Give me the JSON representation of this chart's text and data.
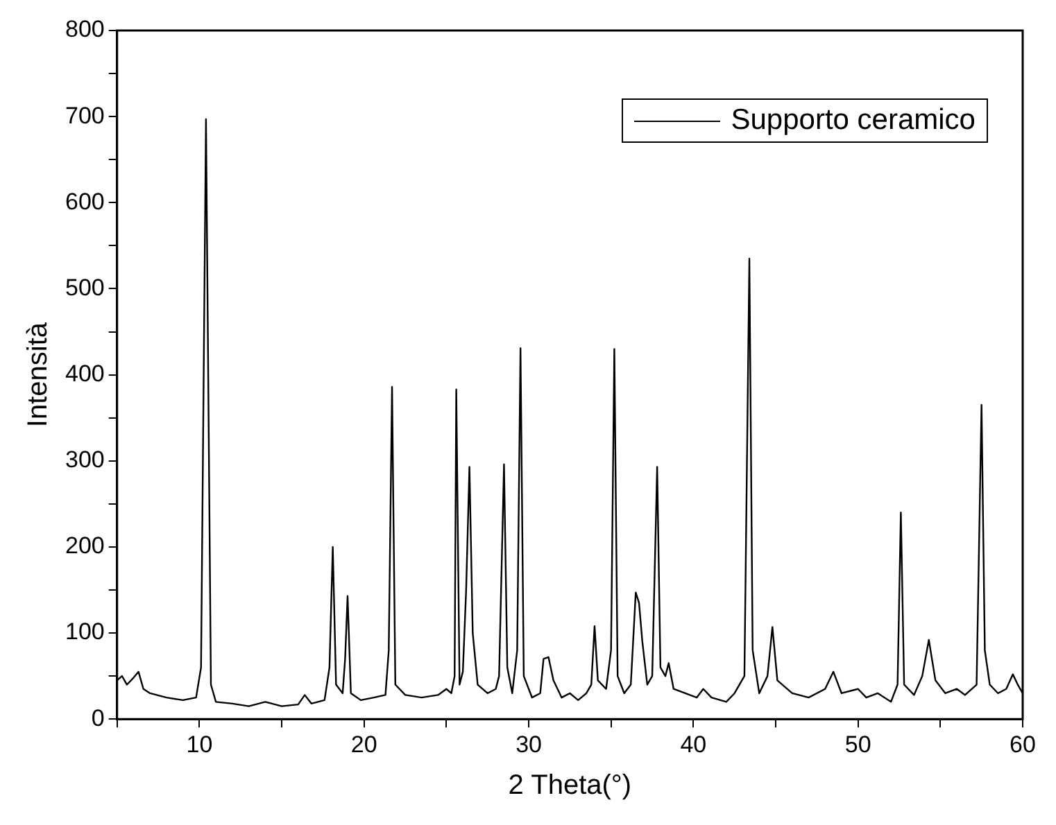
{
  "chart_data": {
    "type": "line",
    "xlabel": "2 Theta(°)",
    "ylabel": "Intensità",
    "legend": "top right",
    "marker": "none",
    "line_style": "solid",
    "grid": false,
    "xlim": [
      5,
      60
    ],
    "xticks": [
      {
        "value": 5,
        "label": null
      },
      10,
      {
        "value": 15,
        "label": null
      },
      20,
      {
        "value": 25,
        "label": null
      },
      30,
      {
        "value": 35,
        "label": null
      },
      40,
      {
        "value": 45,
        "label": null
      },
      50,
      {
        "value": 55,
        "label": null
      },
      60
    ],
    "ylim": [
      0,
      800
    ],
    "yticks": [
      0,
      {
        "value": 50,
        "label": null
      },
      100,
      {
        "value": 150,
        "label": null
      },
      200,
      {
        "value": 250,
        "label": null
      },
      300,
      {
        "value": 350,
        "label": null
      },
      400,
      {
        "value": 450,
        "label": null
      },
      500,
      {
        "value": 550,
        "label": null
      },
      600,
      {
        "value": 650,
        "label": null
      },
      700,
      {
        "value": 750,
        "label": null
      },
      800
    ],
    "x": [
      5,
      5.3,
      5.6,
      6,
      6.3,
      6.6,
      7,
      8,
      9,
      9.8,
      10.1,
      10.4,
      10.7,
      11,
      12,
      13,
      14,
      15,
      16,
      16.4,
      16.8,
      17.6,
      17.9,
      18.1,
      18.3,
      18.7,
      18.85,
      19.0,
      19.2,
      19.8,
      20.6,
      21.3,
      21.5,
      21.7,
      21.9,
      22.5,
      23.5,
      24.5,
      25,
      25.3,
      25.5,
      25.6,
      25.8,
      26.0,
      26.2,
      26.4,
      26.6,
      26.9,
      27.5,
      28,
      28.2,
      28.5,
      28.7,
      29.0,
      29.3,
      29.5,
      29.7,
      30.2,
      30.7,
      30.9,
      31.2,
      31.5,
      32,
      32.5,
      33,
      33.5,
      33.8,
      34.0,
      34.2,
      34.7,
      35.0,
      35.2,
      35.4,
      35.8,
      36.2,
      36.5,
      36.7,
      36.9,
      37.2,
      37.5,
      37.8,
      38.0,
      38.3,
      38.5,
      38.8,
      39.5,
      40.2,
      40.6,
      41.1,
      42,
      42.5,
      43.1,
      43.4,
      43.6,
      44.0,
      44.5,
      44.8,
      45.1,
      46,
      47,
      48,
      48.5,
      49,
      50,
      50.5,
      51.2,
      52,
      52.4,
      52.6,
      52.8,
      53.4,
      53.9,
      54.3,
      54.7,
      55.3,
      56,
      56.5,
      57.2,
      57.5,
      57.7,
      58,
      58.5,
      59,
      59.4,
      59.7,
      60
    ],
    "series": [
      {
        "name": "Supporto ceramico",
        "color": "#000000",
        "values": [
          45,
          50,
          40,
          48,
          55,
          35,
          30,
          25,
          22,
          25,
          60,
          697,
          40,
          20,
          18,
          15,
          20,
          15,
          17,
          28,
          18,
          22,
          60,
          200,
          40,
          30,
          70,
          143,
          30,
          22,
          25,
          28,
          80,
          386,
          40,
          28,
          25,
          28,
          35,
          30,
          50,
          383,
          40,
          55,
          150,
          293,
          100,
          40,
          30,
          35,
          50,
          296,
          60,
          30,
          80,
          431,
          50,
          25,
          30,
          70,
          72,
          45,
          25,
          30,
          22,
          30,
          40,
          108,
          45,
          35,
          80,
          430,
          50,
          30,
          40,
          147,
          135,
          90,
          40,
          50,
          293,
          60,
          50,
          65,
          35,
          30,
          25,
          35,
          25,
          20,
          30,
          50,
          535,
          80,
          30,
          50,
          107,
          45,
          30,
          25,
          35,
          55,
          30,
          35,
          25,
          30,
          20,
          40,
          240,
          40,
          28,
          50,
          92,
          45,
          30,
          35,
          28,
          40,
          365,
          80,
          40,
          30,
          35,
          52,
          40,
          30
        ]
      }
    ]
  }
}
